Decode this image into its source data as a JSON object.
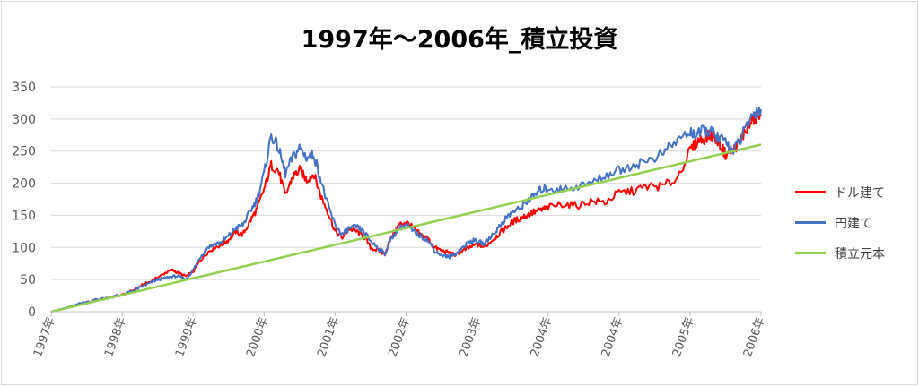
{
  "chart_data": {
    "type": "line",
    "title": "1997年～2006年_積立投資",
    "y_ticks": [
      "350",
      "300",
      "250",
      "200",
      "150",
      "100",
      "50",
      "0"
    ],
    "ylim": [
      0,
      350
    ],
    "x_labels": [
      "1997年",
      "1998年",
      "1999年",
      "2000年",
      "2001年",
      "2002年",
      "2003年",
      "2004年",
      "2004年",
      "2005年",
      "2006年"
    ],
    "grid": true,
    "legend_position": "right",
    "series": [
      {
        "name": "ドル建て",
        "color": "#ff0000",
        "x": [
          0,
          0.2,
          0.4,
          0.6,
          0.8,
          1.0,
          1.1,
          1.2,
          1.3,
          1.4,
          1.5,
          1.6,
          1.7,
          1.8,
          1.9,
          2.0,
          2.1,
          2.2,
          2.3,
          2.4,
          2.5,
          2.6,
          2.7,
          2.8,
          2.9,
          3.0,
          3.1,
          3.2,
          3.3,
          3.4,
          3.5,
          3.6,
          3.7,
          3.8,
          3.9,
          4.0,
          4.1,
          4.2,
          4.3,
          4.4,
          4.5,
          4.6,
          4.7,
          4.8,
          4.9,
          5.0,
          5.1,
          5.2,
          5.3,
          5.4,
          5.5,
          5.6,
          5.7,
          5.8,
          5.9,
          6.0,
          6.1,
          6.2,
          6.3,
          6.4,
          6.5,
          6.6,
          6.7,
          6.8,
          6.9,
          7.0,
          7.2,
          7.4,
          7.6,
          7.8,
          8.0,
          8.2,
          8.4,
          8.6,
          8.8,
          9.0,
          9.1,
          9.2,
          9.3,
          9.4,
          9.5,
          9.6,
          9.7,
          9.8,
          9.9,
          10.0
        ],
        "values": [
          0,
          5,
          11,
          17,
          22,
          26,
          30,
          36,
          42,
          47,
          53,
          60,
          65,
          60,
          55,
          62,
          80,
          92,
          100,
          104,
          112,
          125,
          120,
          140,
          160,
          190,
          228,
          220,
          180,
          210,
          220,
          205,
          215,
          180,
          155,
          125,
          115,
          130,
          125,
          118,
          100,
          95,
          90,
          118,
          135,
          140,
          130,
          120,
          115,
          100,
          95,
          92,
          88,
          95,
          100,
          105,
          100,
          110,
          120,
          130,
          140,
          145,
          150,
          155,
          158,
          162,
          168,
          165,
          172,
          170,
          185,
          188,
          195,
          195,
          205,
          250,
          265,
          270,
          275,
          265,
          245,
          250,
          265,
          285,
          300,
          305
        ]
      },
      {
        "name": "円建て",
        "color": "#4472c4",
        "x": [
          0,
          0.2,
          0.4,
          0.6,
          0.8,
          1.0,
          1.1,
          1.2,
          1.3,
          1.4,
          1.5,
          1.6,
          1.7,
          1.8,
          1.9,
          2.0,
          2.1,
          2.2,
          2.3,
          2.4,
          2.5,
          2.6,
          2.7,
          2.8,
          2.9,
          3.0,
          3.1,
          3.2,
          3.3,
          3.4,
          3.5,
          3.6,
          3.7,
          3.8,
          3.9,
          4.0,
          4.1,
          4.2,
          4.3,
          4.4,
          4.5,
          4.6,
          4.7,
          4.8,
          4.9,
          5.0,
          5.1,
          5.2,
          5.3,
          5.4,
          5.5,
          5.6,
          5.7,
          5.8,
          5.9,
          6.0,
          6.1,
          6.2,
          6.3,
          6.4,
          6.5,
          6.6,
          6.7,
          6.8,
          6.9,
          7.0,
          7.2,
          7.4,
          7.6,
          7.8,
          8.0,
          8.2,
          8.4,
          8.6,
          8.8,
          9.0,
          9.1,
          9.2,
          9.3,
          9.4,
          9.5,
          9.6,
          9.7,
          9.8,
          9.9,
          10.0
        ],
        "values": [
          0,
          6,
          12,
          18,
          22,
          26,
          30,
          35,
          40,
          45,
          50,
          52,
          55,
          55,
          50,
          65,
          85,
          100,
          105,
          108,
          118,
          130,
          135,
          155,
          175,
          215,
          275,
          255,
          215,
          240,
          255,
          240,
          245,
          205,
          165,
          135,
          120,
          130,
          132,
          125,
          110,
          100,
          90,
          115,
          130,
          135,
          125,
          118,
          112,
          95,
          88,
          85,
          90,
          100,
          110,
          110,
          105,
          118,
          130,
          145,
          155,
          160,
          172,
          180,
          190,
          192,
          190,
          195,
          200,
          212,
          220,
          228,
          235,
          245,
          265,
          280,
          275,
          282,
          280,
          270,
          265,
          250,
          265,
          290,
          310,
          315
        ]
      },
      {
        "name": "積立元本",
        "color": "#92d050",
        "x": [
          0,
          10
        ],
        "values": [
          0,
          260
        ]
      }
    ]
  }
}
